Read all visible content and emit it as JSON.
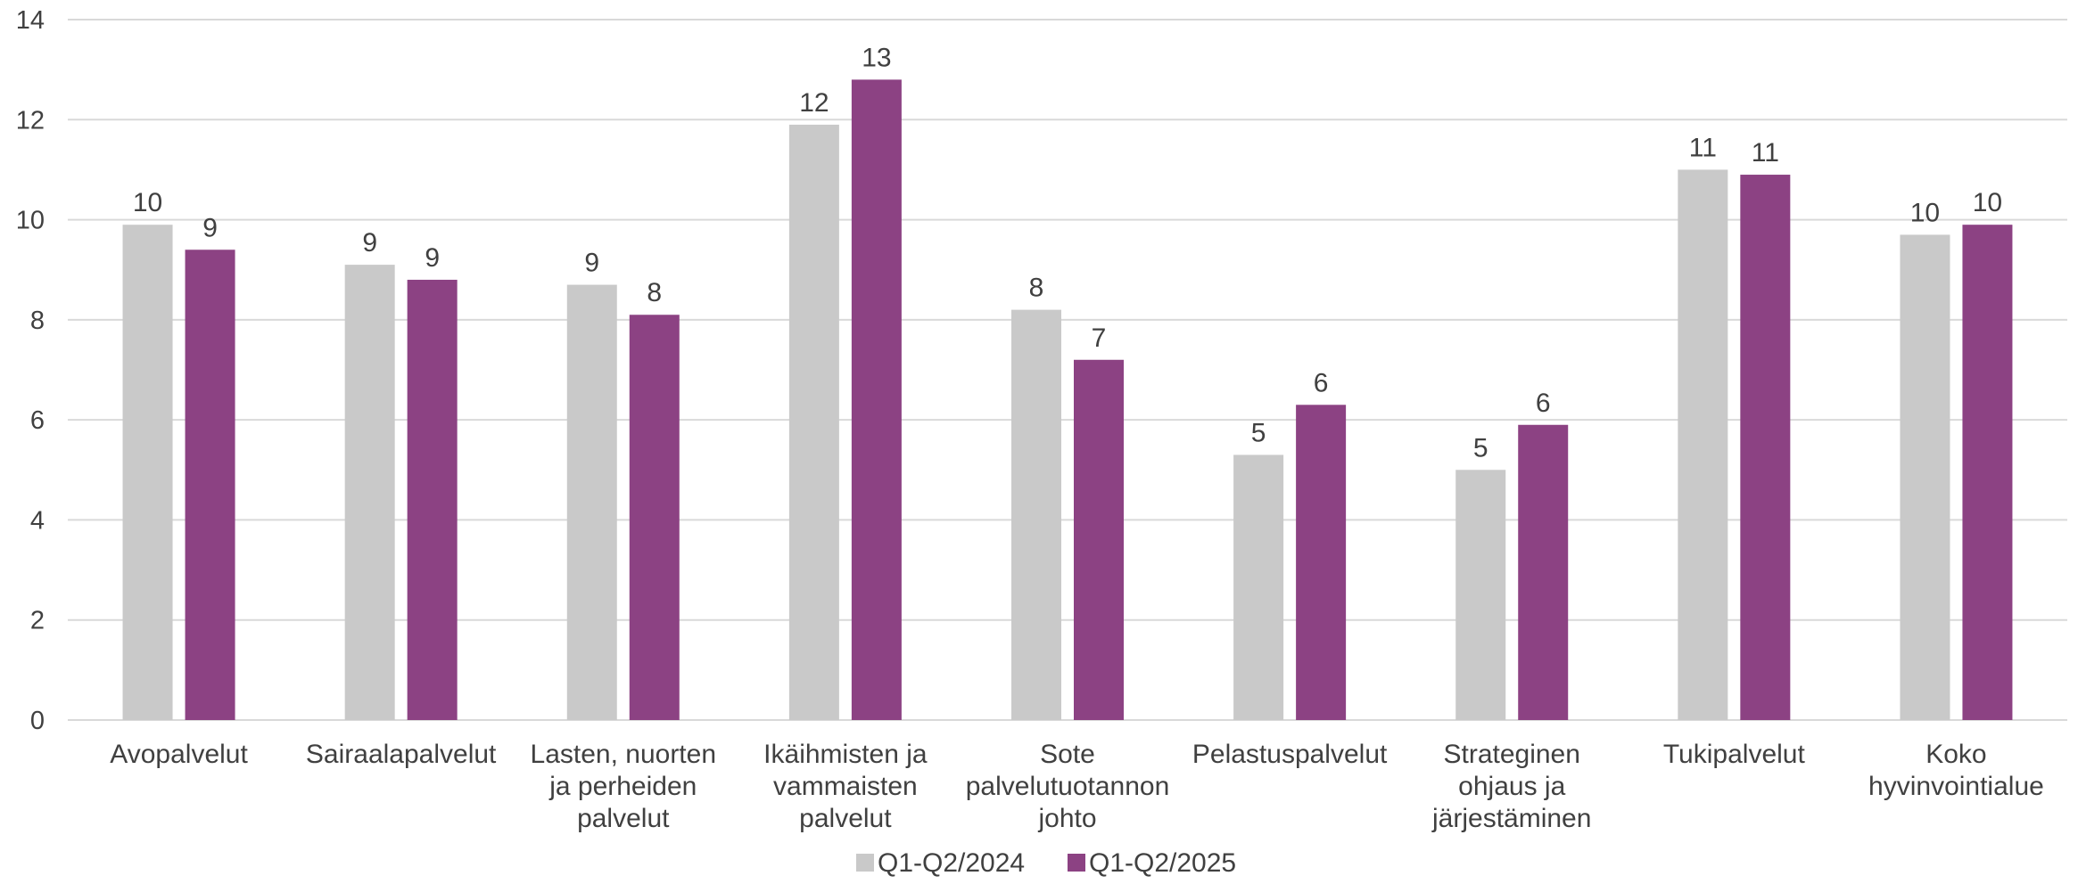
{
  "chart_data": {
    "type": "bar",
    "title": "",
    "xlabel": "",
    "ylabel": "",
    "ylim": [
      0,
      14
    ],
    "yticks": [
      0,
      2,
      4,
      6,
      8,
      10,
      12,
      14
    ],
    "grid": true,
    "legend_position": "bottom",
    "categories": [
      [
        "Avopalvelut"
      ],
      [
        "Sairaalapalvelut"
      ],
      [
        "Lasten, nuorten",
        "ja perheiden",
        "palvelut"
      ],
      [
        "Ikäihmisten ja",
        "vammaisten",
        "palvelut"
      ],
      [
        "Sote",
        "palvelutuotannon",
        "johto"
      ],
      [
        "Pelastuspalvelut"
      ],
      [
        "Strateginen",
        "ohjaus ja",
        "järjestäminen"
      ],
      [
        "Tukipalvelut"
      ],
      [
        "Koko",
        "hyvinvointialue"
      ]
    ],
    "series": [
      {
        "name": "Q1-Q2/2024",
        "color": "#c9c9c9",
        "values": [
          9.9,
          9.1,
          8.7,
          11.9,
          8.2,
          5.3,
          5.0,
          11.0,
          9.7
        ],
        "labels": [
          "10",
          "9",
          "9",
          "12",
          "8",
          "5",
          "5",
          "11",
          "10"
        ]
      },
      {
        "name": "Q1-Q2/2025",
        "color": "#8c4283",
        "values": [
          9.4,
          8.8,
          8.1,
          12.8,
          7.2,
          6.3,
          5.9,
          10.9,
          9.9
        ],
        "labels": [
          "9",
          "9",
          "8",
          "13",
          "7",
          "6",
          "6",
          "11",
          "10"
        ]
      }
    ]
  }
}
